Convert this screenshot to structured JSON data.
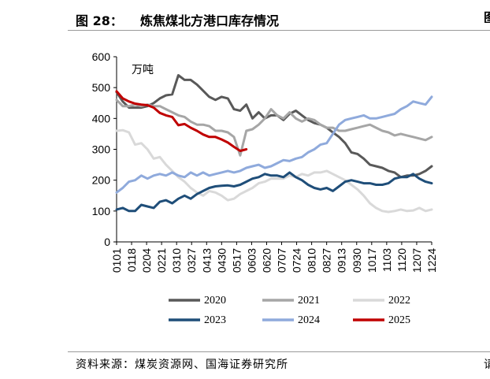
{
  "header": {
    "figure_label": "图 28：",
    "figure_title": "炼焦煤北方港口库存情况",
    "edge_glyph": "图"
  },
  "footer": {
    "source": "资料来源：煤炭资源网、国海证券研究所",
    "edge_glyph": "请"
  },
  "chart_data": {
    "type": "line",
    "unit_label": "万吨",
    "ylim": [
      0,
      600
    ],
    "y_ticks": [
      0,
      100,
      200,
      300,
      400,
      500,
      600
    ],
    "x_tick_labels": [
      "0101",
      "0118",
      "0204",
      "0221",
      "0310",
      "0327",
      "0413",
      "0430",
      "0517",
      "0603",
      "0620",
      "0707",
      "0724",
      "0810",
      "0827",
      "0913",
      "0930",
      "1017",
      "1103",
      "1120",
      "1207",
      "1224"
    ],
    "n_points": 52,
    "grid": false,
    "legend_position": "bottom",
    "series": [
      {
        "name": "2020",
        "color": "#595959",
        "values": [
          485,
          455,
          435,
          435,
          435,
          440,
          450,
          465,
          475,
          478,
          540,
          525,
          525,
          510,
          490,
          470,
          460,
          470,
          465,
          430,
          425,
          445,
          400,
          420,
          400,
          410,
          410,
          395,
          415,
          425,
          410,
          395,
          385,
          380,
          370,
          355,
          340,
          320,
          290,
          285,
          270,
          250,
          245,
          240,
          230,
          225,
          210,
          215,
          215,
          220,
          230,
          245,
          235,
          220,
          205,
          210
        ]
      },
      {
        "name": "2021",
        "color": "#a6a6a6",
        "values": [
          460,
          440,
          440,
          445,
          440,
          445,
          440,
          440,
          430,
          420,
          410,
          405,
          390,
          380,
          380,
          375,
          360,
          360,
          355,
          340,
          280,
          360,
          365,
          380,
          400,
          430,
          410,
          400,
          420,
          400,
          390,
          400,
          395,
          380,
          370,
          370,
          360,
          360,
          365,
          370,
          375,
          380,
          370,
          360,
          355,
          345,
          350,
          345,
          340,
          335,
          330,
          340,
          315,
          325,
          360,
          355,
          370,
          330
        ]
      },
      {
        "name": "2022",
        "color": "#d9d9d9",
        "values": [
          360,
          362,
          355,
          315,
          320,
          300,
          270,
          275,
          250,
          230,
          210,
          195,
          175,
          160,
          150,
          165,
          160,
          150,
          135,
          140,
          155,
          165,
          175,
          190,
          195,
          205,
          205,
          205,
          215,
          210,
          220,
          215,
          225,
          225,
          230,
          220,
          210,
          200,
          185,
          170,
          150,
          125,
          110,
          100,
          97,
          100,
          105,
          100,
          102,
          110,
          100,
          105,
          112
        ]
      },
      {
        "name": "2023",
        "color": "#1f4e79",
        "values": [
          105,
          110,
          100,
          100,
          120,
          115,
          110,
          130,
          135,
          125,
          140,
          150,
          140,
          155,
          165,
          175,
          180,
          182,
          183,
          180,
          185,
          195,
          205,
          210,
          220,
          215,
          215,
          210,
          225,
          210,
          200,
          185,
          175,
          170,
          175,
          165,
          180,
          195,
          200,
          195,
          190,
          190,
          185,
          185,
          190,
          205,
          210,
          210,
          220,
          205,
          195,
          190,
          185,
          175,
          170,
          150
        ]
      },
      {
        "name": "2024",
        "color": "#8faadc",
        "values": [
          160,
          175,
          195,
          200,
          215,
          205,
          215,
          220,
          215,
          225,
          215,
          210,
          225,
          215,
          225,
          215,
          220,
          225,
          230,
          225,
          230,
          240,
          245,
          250,
          240,
          245,
          255,
          265,
          262,
          270,
          275,
          290,
          300,
          315,
          320,
          350,
          380,
          395,
          400,
          405,
          410,
          400,
          400,
          405,
          410,
          415,
          430,
          440,
          455,
          450,
          445,
          470
        ]
      },
      {
        "name": "2025",
        "color": "#c00000",
        "values": [
          488,
          465,
          455,
          448,
          445,
          443,
          435,
          418,
          410,
          405,
          378,
          382,
          370,
          360,
          348,
          340,
          340,
          332,
          322,
          308,
          295,
          300
        ]
      }
    ]
  }
}
